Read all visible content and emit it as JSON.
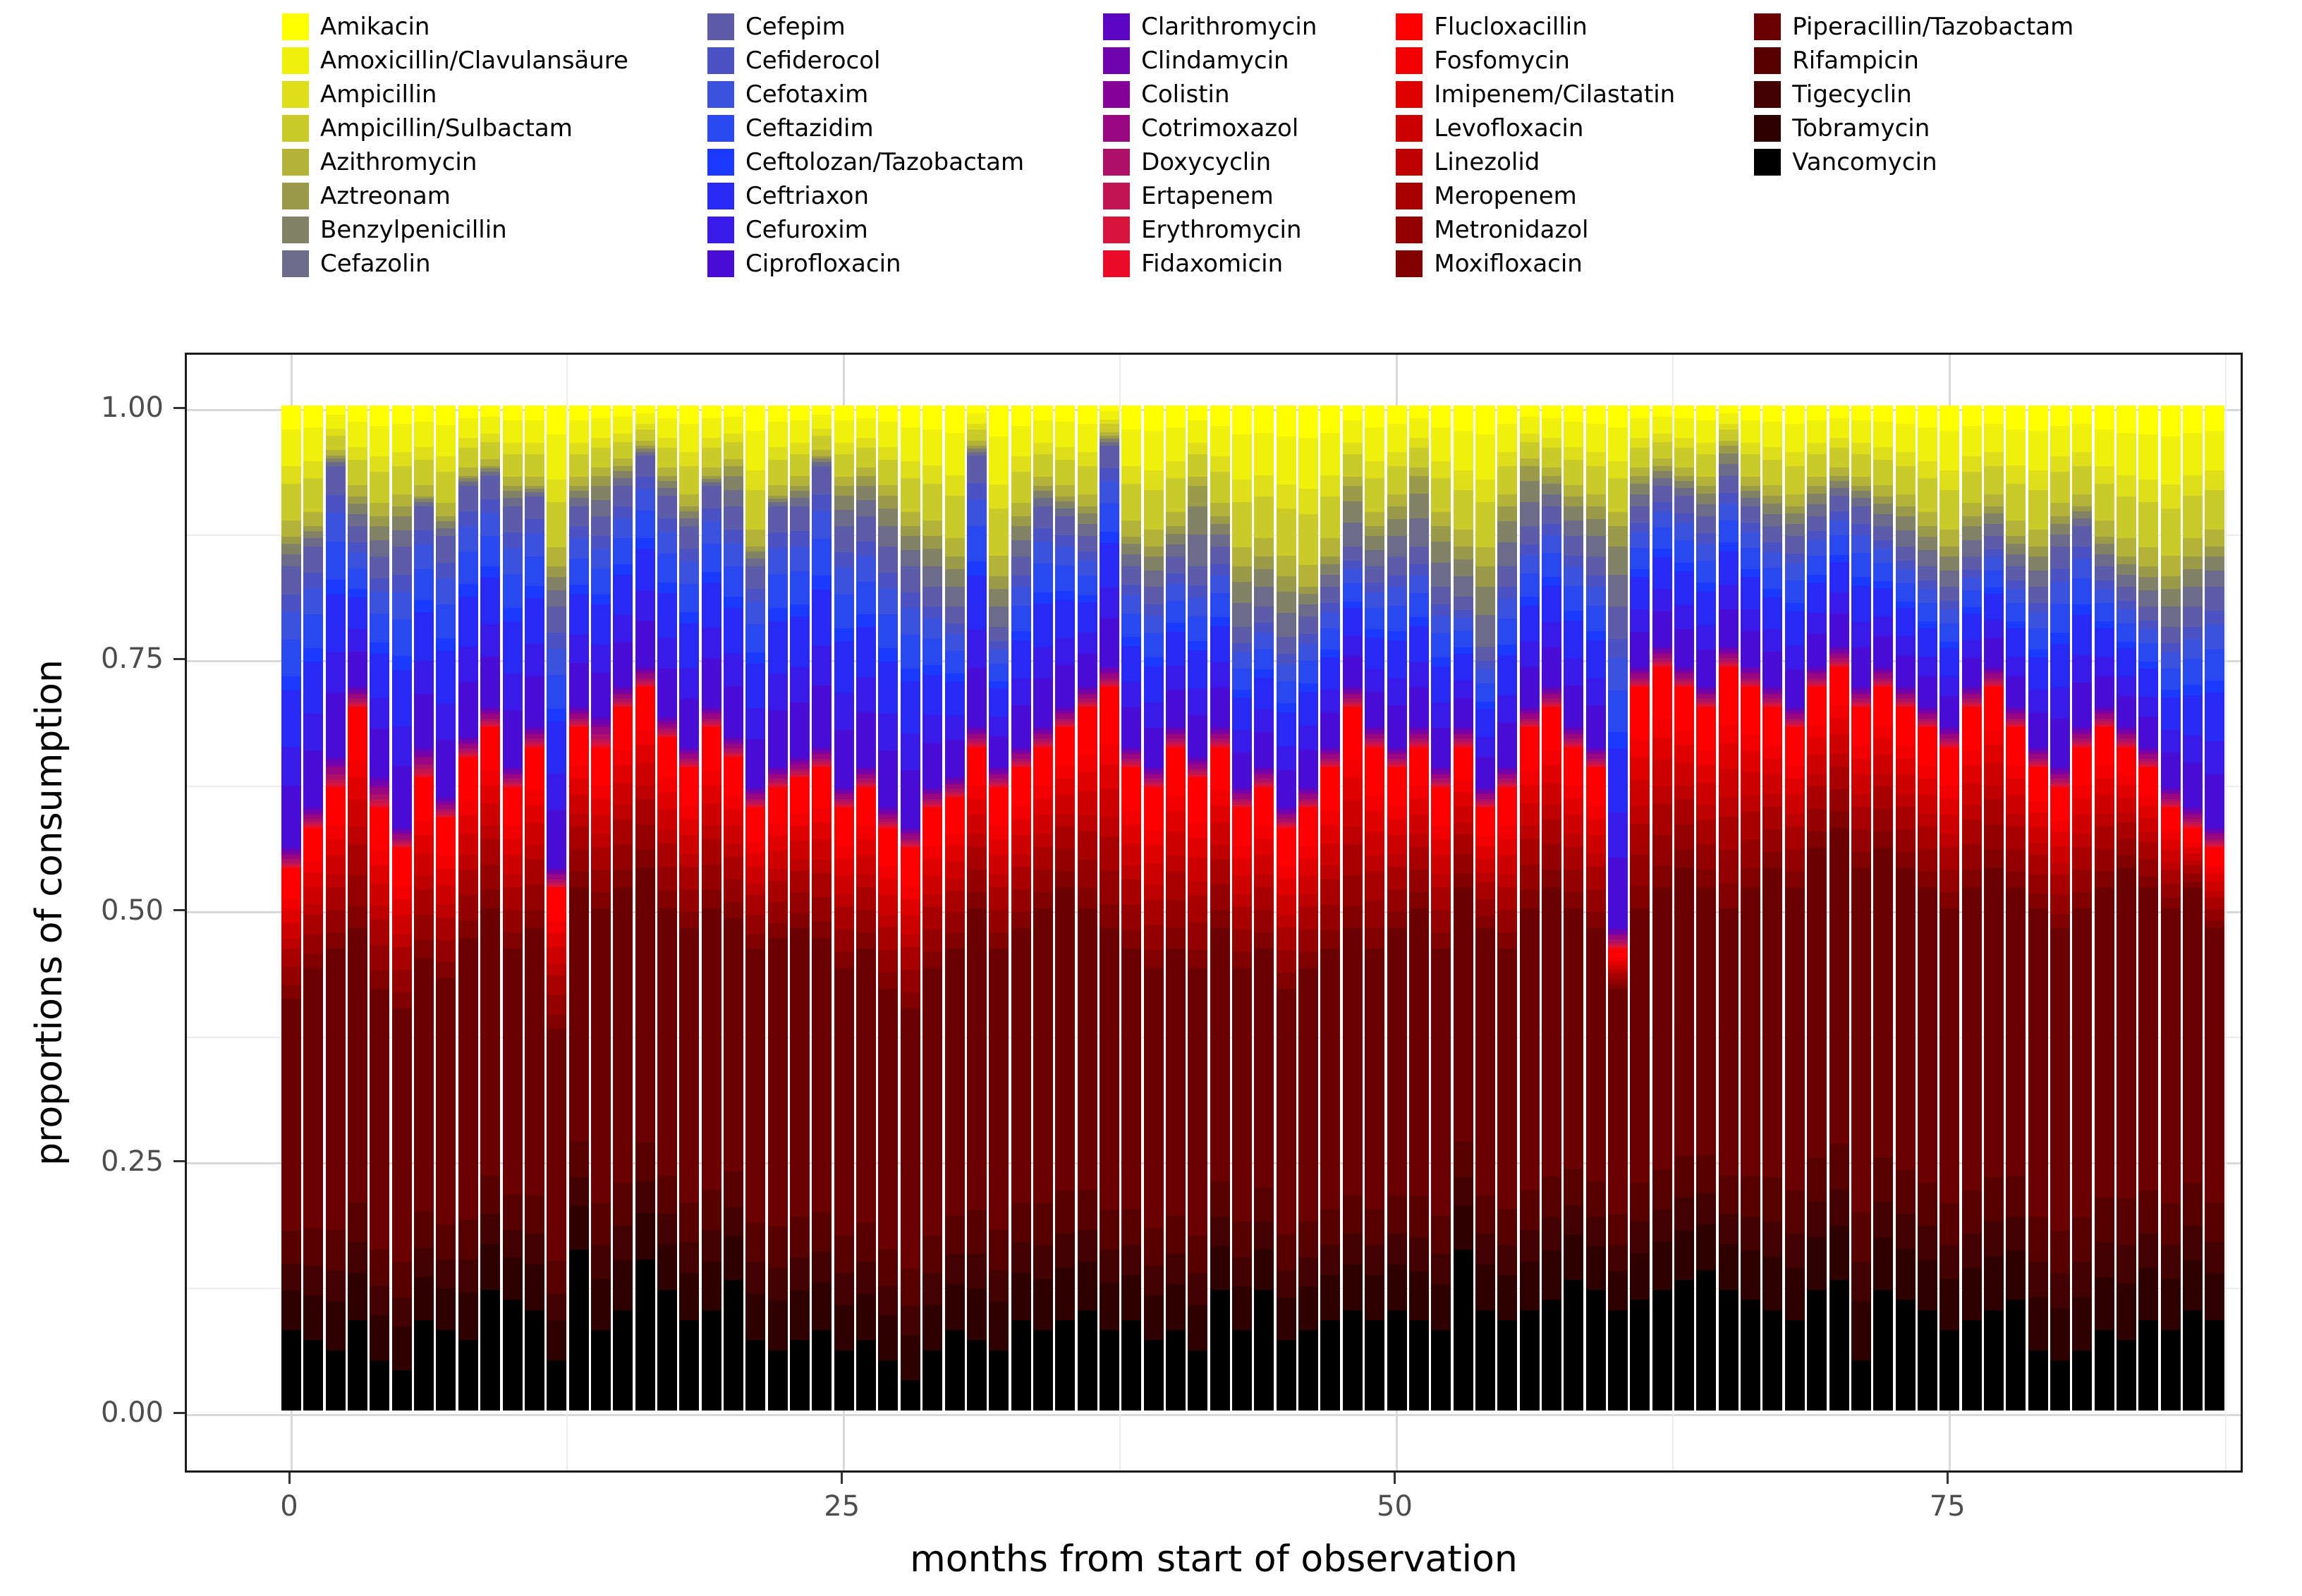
{
  "chart_data": {
    "type": "stacked-bar",
    "title": "",
    "xlabel": "months from start of observation",
    "ylabel": "proportions of consumption",
    "n_months": 88,
    "x_ticks": [
      0,
      25,
      50,
      75
    ],
    "x_minor": [
      12.5,
      37.5,
      62.5,
      87.5
    ],
    "y_ticks": [
      {
        "value": 0.0,
        "label": "0.00"
      },
      {
        "value": 0.25,
        "label": "0.25"
      },
      {
        "value": 0.5,
        "label": "0.50"
      },
      {
        "value": 0.75,
        "label": "0.75"
      },
      {
        "value": 1.0,
        "label": "1.00"
      }
    ],
    "y_minor": [
      0.125,
      0.375,
      0.625,
      0.875
    ],
    "ylim": [
      0,
      1
    ],
    "grid": true,
    "legend_position": "top",
    "legend_columns": [
      8,
      8,
      8,
      8,
      5
    ],
    "palette": {
      "background": "#FFFFFF",
      "panel_border": "#1A1A1A",
      "grid_major": "#D9D9D9",
      "grid_minor": "#ECECEC",
      "axis_text": "#4D4D4D",
      "axis_title": "#000000"
    },
    "drugs": [
      {
        "name": "Amikacin",
        "color": "#FFFF00"
      },
      {
        "name": "Amoxicillin/Clavulansäure",
        "color": "#F0F00D"
      },
      {
        "name": "Ampicillin",
        "color": "#DEDE1A"
      },
      {
        "name": "Ampicillin/Sulbactam",
        "color": "#CACA29"
      },
      {
        "name": "Azithromycin",
        "color": "#B3B338"
      },
      {
        "name": "Aztreonam",
        "color": "#9A9A48"
      },
      {
        "name": "Benzylpenicillin",
        "color": "#828266"
      },
      {
        "name": "Cefazolin",
        "color": "#6C6C8A"
      },
      {
        "name": "Cefepim",
        "color": "#5C5CA8"
      },
      {
        "name": "Cefiderocol",
        "color": "#4A52C4"
      },
      {
        "name": "Cefotaxim",
        "color": "#3A52DE"
      },
      {
        "name": "Ceftazidim",
        "color": "#2948F0"
      },
      {
        "name": "Ceftolozan/Tazobactam",
        "color": "#1A3AFF"
      },
      {
        "name": "Ceftriaxon",
        "color": "#2929F5"
      },
      {
        "name": "Cefuroxim",
        "color": "#3A1AE8"
      },
      {
        "name": "Ciprofloxacin",
        "color": "#4A0DD6"
      },
      {
        "name": "Clarithromycin",
        "color": "#5C05C2"
      },
      {
        "name": "Clindamycin",
        "color": "#7003AD"
      },
      {
        "name": "Colistin",
        "color": "#850099"
      },
      {
        "name": "Cotrimoxazol",
        "color": "#990782"
      },
      {
        "name": "Doxycyclin",
        "color": "#AD0F69"
      },
      {
        "name": "Ertapenem",
        "color": "#C21452"
      },
      {
        "name": "Erythromycin",
        "color": "#D6143C"
      },
      {
        "name": "Fidaxomicin",
        "color": "#EB0A28"
      },
      {
        "name": "Flucloxacillin",
        "color": "#FF0000"
      },
      {
        "name": "Fosfomycin",
        "color": "#F00000"
      },
      {
        "name": "Imipenem/Cilastatin",
        "color": "#E00000"
      },
      {
        "name": "Levofloxacin",
        "color": "#CF0000"
      },
      {
        "name": "Linezolid",
        "color": "#BD0000"
      },
      {
        "name": "Meropenem",
        "color": "#A80000"
      },
      {
        "name": "Metronidazol",
        "color": "#940000"
      },
      {
        "name": "Moxifloxacin",
        "color": "#800000"
      },
      {
        "name": "Piperacillin/Tazobactam",
        "color": "#6B0000"
      },
      {
        "name": "Rifampicin",
        "color": "#570000"
      },
      {
        "name": "Tigecyclin",
        "color": "#420000"
      },
      {
        "name": "Tobramycin",
        "color": "#2E0000"
      },
      {
        "name": "Vancomycin",
        "color": "#000000"
      }
    ],
    "stack_note": "groups listed bottom-up; members listed bottom-up (reverse alphabetical stacking); band_tops rows give cumulative proportion at top of groups 1-6 per month, group 7 tops out at 1.0",
    "groups": [
      {
        "band": "black",
        "members": [
          "Vancomycin"
        ],
        "weights": [
          1.0
        ]
      },
      {
        "band": "darkred",
        "members": [
          "Tobramycin",
          "Tigecyclin",
          "Rifampicin",
          "Piperacillin/Tazobactam"
        ],
        "weights": [
          0.12,
          0.08,
          0.1,
          0.7
        ]
      },
      {
        "band": "red",
        "members": [
          "Moxifloxacin",
          "Metronidazol",
          "Meropenem",
          "Linezolid",
          "Levofloxacin",
          "Imipenem/Cilastatin",
          "Fosfomycin",
          "Flucloxacillin"
        ],
        "weights": [
          0.1,
          0.14,
          0.14,
          0.08,
          0.12,
          0.1,
          0.08,
          0.24
        ]
      },
      {
        "band": "crimson",
        "members": [
          "Fidaxomicin",
          "Erythromycin",
          "Ertapenem",
          "Doxycyclin",
          "Cotrimoxazol",
          "Colistin",
          "Clindamycin",
          "Clarithromycin"
        ],
        "weights": [
          0.06,
          0.1,
          0.12,
          0.16,
          0.22,
          0.08,
          0.16,
          0.1
        ]
      },
      {
        "band": "blue",
        "members": [
          "Ciprofloxacin",
          "Cefuroxim",
          "Ceftriaxon",
          "Ceftolozan/Tazobactam",
          "Ceftazidim",
          "Cefotaxim",
          "Cefiderocol",
          "Cefepim"
        ],
        "weights": [
          0.22,
          0.14,
          0.2,
          0.05,
          0.13,
          0.1,
          0.06,
          0.1
        ]
      },
      {
        "band": "gray",
        "members": [
          "Cefazolin",
          "Benzylpenicillin",
          "Aztreonam"
        ],
        "weights": [
          0.4,
          0.35,
          0.25
        ]
      },
      {
        "band": "yellow",
        "members": [
          "Azithromycin",
          "Ampicillin/Sulbactam",
          "Ampicillin",
          "Amoxicillin/Clavulansäure",
          "Amikacin"
        ],
        "weights": [
          0.12,
          0.28,
          0.14,
          0.28,
          0.18
        ]
      }
    ],
    "band_tops": [
      [
        0.08,
        0.41,
        0.54,
        0.56,
        0.84,
        0.87
      ],
      [
        0.07,
        0.44,
        0.58,
        0.6,
        0.86,
        0.88
      ],
      [
        0.06,
        0.46,
        0.62,
        0.65,
        0.94,
        0.95
      ],
      [
        0.09,
        0.48,
        0.7,
        0.72,
        0.88,
        0.91
      ],
      [
        0.05,
        0.42,
        0.6,
        0.63,
        0.85,
        0.89
      ],
      [
        0.04,
        0.4,
        0.56,
        0.58,
        0.86,
        0.9
      ],
      [
        0.09,
        0.45,
        0.63,
        0.66,
        0.9,
        0.91
      ],
      [
        0.08,
        0.43,
        0.59,
        0.61,
        0.87,
        0.89
      ],
      [
        0.07,
        0.47,
        0.65,
        0.67,
        0.92,
        0.93
      ],
      [
        0.12,
        0.5,
        0.68,
        0.7,
        0.93,
        0.94
      ],
      [
        0.11,
        0.46,
        0.62,
        0.64,
        0.9,
        0.92
      ],
      [
        0.1,
        0.48,
        0.66,
        0.68,
        0.91,
        0.92
      ],
      [
        0.05,
        0.38,
        0.52,
        0.54,
        0.8,
        0.84
      ],
      [
        0.16,
        0.52,
        0.68,
        0.7,
        0.9,
        0.92
      ],
      [
        0.08,
        0.5,
        0.66,
        0.69,
        0.89,
        0.93
      ],
      [
        0.1,
        0.52,
        0.7,
        0.72,
        0.92,
        0.94
      ],
      [
        0.15,
        0.54,
        0.72,
        0.74,
        0.95,
        0.96
      ],
      [
        0.12,
        0.5,
        0.67,
        0.69,
        0.91,
        0.93
      ],
      [
        0.09,
        0.48,
        0.64,
        0.66,
        0.88,
        0.9
      ],
      [
        0.1,
        0.5,
        0.68,
        0.7,
        0.92,
        0.93
      ],
      [
        0.13,
        0.49,
        0.65,
        0.67,
        0.9,
        0.94
      ],
      [
        0.07,
        0.46,
        0.6,
        0.62,
        0.84,
        0.86
      ],
      [
        0.06,
        0.47,
        0.62,
        0.64,
        0.9,
        0.91
      ],
      [
        0.07,
        0.48,
        0.63,
        0.65,
        0.9,
        0.92
      ],
      [
        0.08,
        0.47,
        0.64,
        0.66,
        0.94,
        0.95
      ],
      [
        0.06,
        0.44,
        0.6,
        0.62,
        0.88,
        0.92
      ],
      [
        0.07,
        0.46,
        0.62,
        0.64,
        0.89,
        0.93
      ],
      [
        0.05,
        0.42,
        0.58,
        0.6,
        0.86,
        0.91
      ],
      [
        0.03,
        0.4,
        0.56,
        0.58,
        0.84,
        0.88
      ],
      [
        0.06,
        0.44,
        0.6,
        0.62,
        0.82,
        0.87
      ],
      [
        0.08,
        0.46,
        0.61,
        0.63,
        0.8,
        0.85
      ],
      [
        0.07,
        0.5,
        0.66,
        0.68,
        0.95,
        0.96
      ],
      [
        0.06,
        0.46,
        0.62,
        0.64,
        0.78,
        0.83
      ],
      [
        0.09,
        0.48,
        0.64,
        0.66,
        0.85,
        0.89
      ],
      [
        0.08,
        0.5,
        0.66,
        0.68,
        0.9,
        0.92
      ],
      [
        0.09,
        0.52,
        0.68,
        0.7,
        0.89,
        0.91
      ],
      [
        0.1,
        0.5,
        0.7,
        0.72,
        0.87,
        0.9
      ],
      [
        0.08,
        0.48,
        0.72,
        0.74,
        0.96,
        0.97
      ],
      [
        0.09,
        0.46,
        0.64,
        0.66,
        0.84,
        0.87
      ],
      [
        0.07,
        0.44,
        0.62,
        0.64,
        0.82,
        0.86
      ],
      [
        0.08,
        0.46,
        0.66,
        0.68,
        0.85,
        0.88
      ],
      [
        0.06,
        0.44,
        0.63,
        0.65,
        0.84,
        0.92
      ],
      [
        0.12,
        0.48,
        0.66,
        0.68,
        0.86,
        0.89
      ],
      [
        0.08,
        0.44,
        0.6,
        0.62,
        0.78,
        0.84
      ],
      [
        0.12,
        0.46,
        0.62,
        0.64,
        0.8,
        0.85
      ],
      [
        0.07,
        0.42,
        0.58,
        0.6,
        0.77,
        0.83
      ],
      [
        0.08,
        0.44,
        0.6,
        0.62,
        0.79,
        0.82
      ],
      [
        0.09,
        0.46,
        0.64,
        0.66,
        0.82,
        0.85
      ],
      [
        0.1,
        0.48,
        0.7,
        0.72,
        0.86,
        0.92
      ],
      [
        0.09,
        0.46,
        0.66,
        0.68,
        0.84,
        0.88
      ],
      [
        0.1,
        0.48,
        0.64,
        0.66,
        0.85,
        0.9
      ],
      [
        0.09,
        0.5,
        0.66,
        0.68,
        0.86,
        0.93
      ],
      [
        0.08,
        0.46,
        0.62,
        0.64,
        0.82,
        0.88
      ],
      [
        0.16,
        0.52,
        0.66,
        0.68,
        0.81,
        0.86
      ],
      [
        0.1,
        0.48,
        0.6,
        0.62,
        0.76,
        0.84
      ],
      [
        0.09,
        0.46,
        0.62,
        0.64,
        0.84,
        0.9
      ],
      [
        0.1,
        0.5,
        0.68,
        0.7,
        0.88,
        0.94
      ],
      [
        0.11,
        0.52,
        0.7,
        0.72,
        0.9,
        0.93
      ],
      [
        0.13,
        0.5,
        0.66,
        0.68,
        0.87,
        0.91
      ],
      [
        0.12,
        0.48,
        0.64,
        0.66,
        0.85,
        0.9
      ],
      [
        0.1,
        0.42,
        0.46,
        0.48,
        0.8,
        0.88
      ],
      [
        0.11,
        0.5,
        0.72,
        0.74,
        0.9,
        0.93
      ],
      [
        0.12,
        0.52,
        0.74,
        0.76,
        0.92,
        0.94
      ],
      [
        0.13,
        0.54,
        0.72,
        0.74,
        0.91,
        0.93
      ],
      [
        0.14,
        0.52,
        0.7,
        0.72,
        0.89,
        0.92
      ],
      [
        0.12,
        0.5,
        0.74,
        0.76,
        0.93,
        0.96
      ],
      [
        0.11,
        0.52,
        0.72,
        0.74,
        0.9,
        0.92
      ],
      [
        0.1,
        0.54,
        0.7,
        0.72,
        0.88,
        0.91
      ],
      [
        0.09,
        0.52,
        0.68,
        0.7,
        0.87,
        0.9
      ],
      [
        0.12,
        0.56,
        0.72,
        0.74,
        0.89,
        0.92
      ],
      [
        0.13,
        0.58,
        0.74,
        0.76,
        0.91,
        0.93
      ],
      [
        0.05,
        0.54,
        0.7,
        0.72,
        0.9,
        0.92
      ],
      [
        0.12,
        0.56,
        0.72,
        0.74,
        0.88,
        0.91
      ],
      [
        0.11,
        0.54,
        0.7,
        0.72,
        0.86,
        0.9
      ],
      [
        0.1,
        0.52,
        0.68,
        0.7,
        0.84,
        0.88
      ],
      [
        0.08,
        0.5,
        0.66,
        0.68,
        0.82,
        0.86
      ],
      [
        0.09,
        0.52,
        0.7,
        0.72,
        0.85,
        0.89
      ],
      [
        0.1,
        0.54,
        0.72,
        0.74,
        0.87,
        0.9
      ],
      [
        0.11,
        0.52,
        0.68,
        0.7,
        0.84,
        0.87
      ],
      [
        0.06,
        0.5,
        0.64,
        0.66,
        0.82,
        0.86
      ],
      [
        0.05,
        0.48,
        0.62,
        0.64,
        0.86,
        0.89
      ],
      [
        0.06,
        0.5,
        0.66,
        0.68,
        0.88,
        0.9
      ],
      [
        0.08,
        0.52,
        0.68,
        0.7,
        0.84,
        0.87
      ],
      [
        0.07,
        0.54,
        0.66,
        0.68,
        0.82,
        0.85
      ],
      [
        0.09,
        0.52,
        0.64,
        0.66,
        0.8,
        0.84
      ],
      [
        0.08,
        0.5,
        0.6,
        0.62,
        0.78,
        0.83
      ],
      [
        0.1,
        0.52,
        0.58,
        0.6,
        0.8,
        0.85
      ],
      [
        0.09,
        0.48,
        0.56,
        0.58,
        0.82,
        0.86
      ]
    ]
  }
}
